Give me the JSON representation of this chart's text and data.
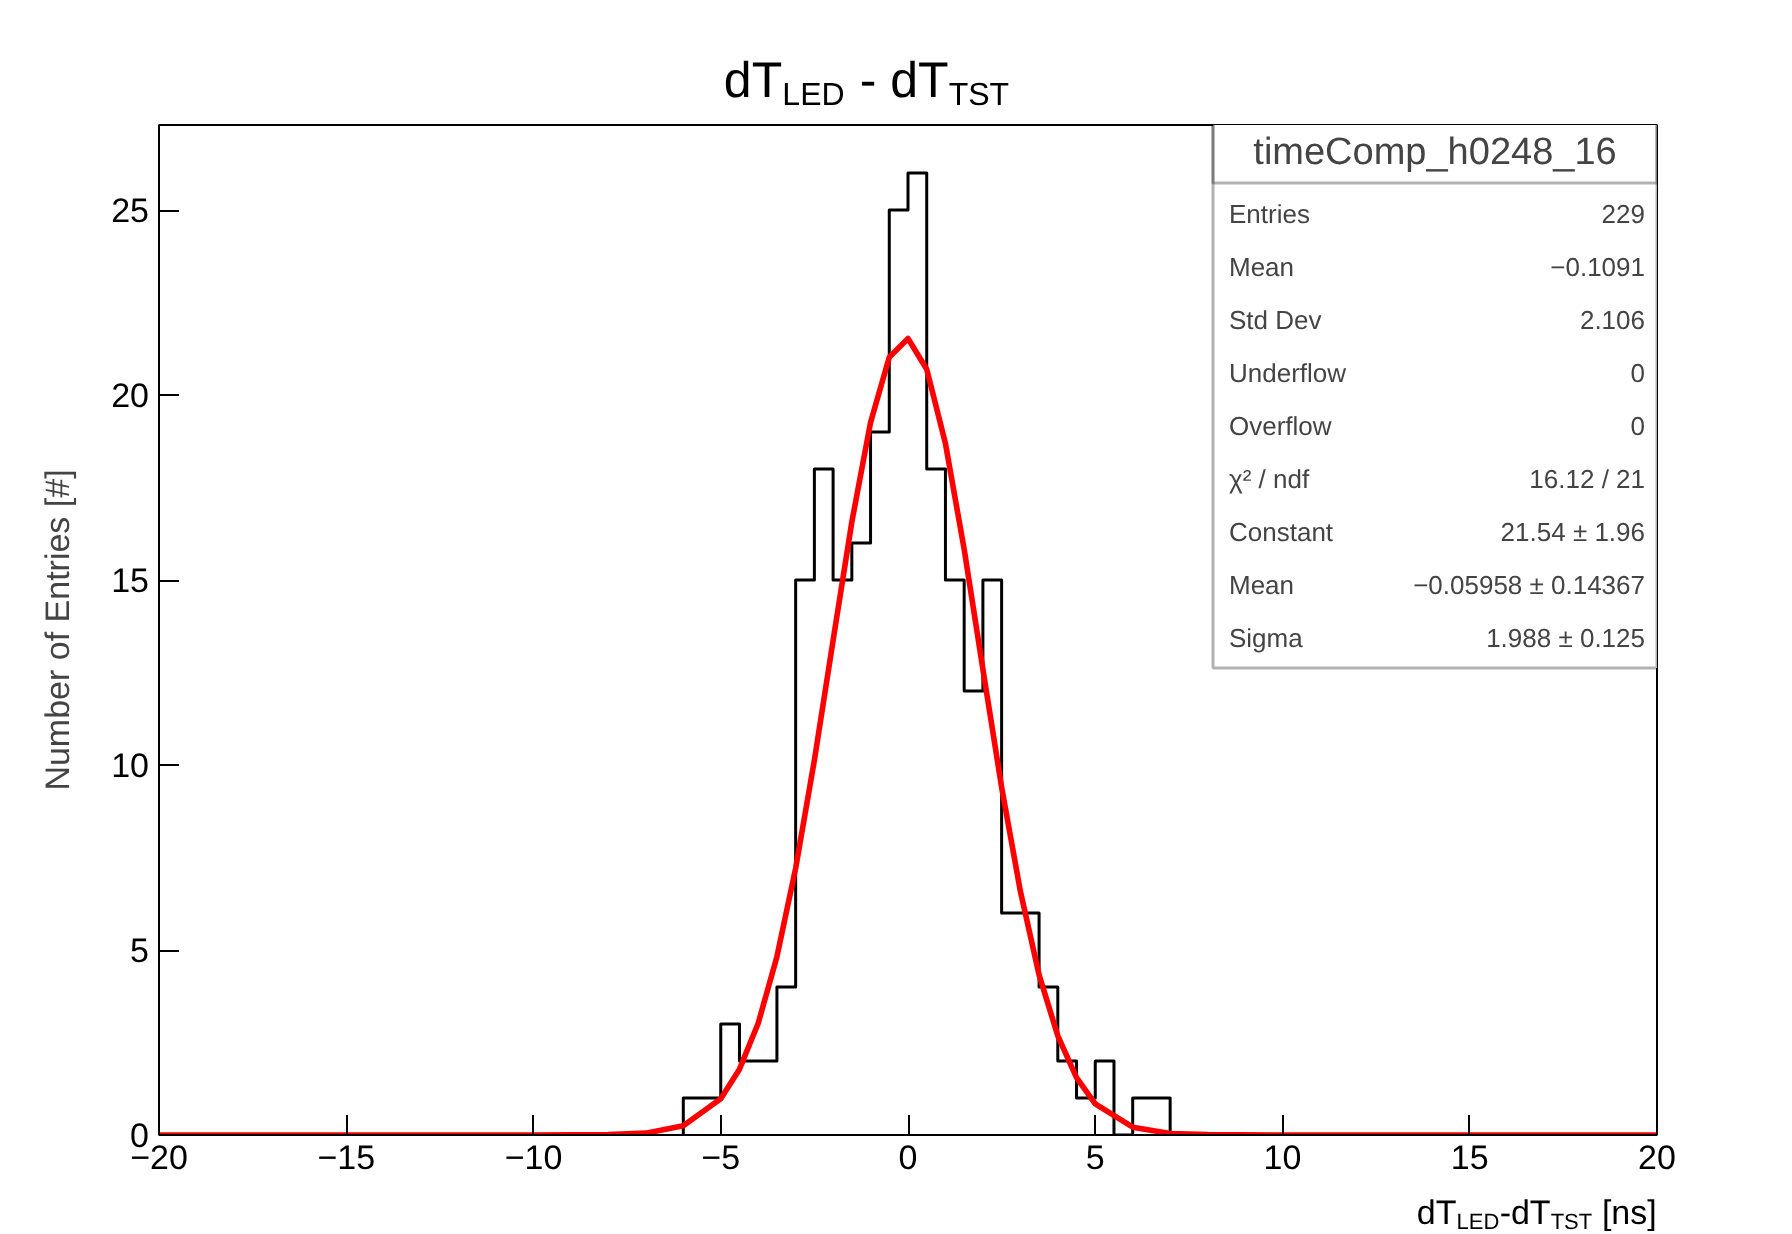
{
  "chart_data": {
    "type": "histogram",
    "title": "dT$_{LED}$ - dT$_{TST}$",
    "xlabel": "dT$_{LED}$-dT$_{TST}$ [ns]",
    "ylabel": "Number of Entries [#]",
    "bins": [
      -6,
      -5.5,
      -5,
      -4.5,
      -4,
      -3.5,
      -3,
      -2.5,
      -2,
      -1.5,
      -1,
      -0.5,
      0,
      0.5,
      1,
      1.5,
      2,
      2.5,
      3,
      3.5,
      4,
      4.5,
      5,
      5.5,
      6,
      6.5,
      7
    ],
    "values": [
      1,
      1,
      3,
      2,
      2,
      4,
      15,
      18,
      15,
      16,
      19,
      25,
      26,
      18,
      15,
      12,
      15,
      6,
      6,
      4,
      2,
      1,
      2,
      0,
      1,
      1
    ],
    "color": "#000000",
    "series": [
      {
        "type": "line",
        "color": "#ff0000",
        "x": [
          -20,
          -10,
          -8,
          -7,
          -6,
          -5,
          -4.5,
          -4,
          -3.5,
          -3,
          -2.5,
          -2,
          -1.5,
          -1,
          -0.5,
          0,
          0.5,
          1,
          1.5,
          2,
          2.5,
          3,
          3.5,
          4,
          4.5,
          5,
          6,
          7,
          8,
          10,
          20
        ],
        "values": [
          0,
          0,
          0.01,
          0.05,
          0.25,
          0.98,
          1.78,
          3.02,
          4.82,
          7.21,
          10.13,
          13.37,
          16.57,
          19.26,
          21.02,
          21.53,
          20.7,
          18.69,
          15.83,
          12.59,
          9.4,
          6.59,
          4.33,
          2.68,
          1.55,
          0.84,
          0.21,
          0.04,
          0.01,
          0,
          0
        ]
      }
    ],
    "xlim": [
      -20,
      20
    ],
    "ylim": [
      0,
      27.3
    ],
    "xticks": [
      -20,
      -15,
      -10,
      -5,
      0,
      5,
      10,
      15,
      20
    ],
    "yticks": [
      0,
      5,
      10,
      15,
      20,
      25
    ],
    "grid": false,
    "annotations": [
      "timeComp_h0248_16",
      "Entries",
      "229",
      "Mean",
      "−0.1091",
      "Std Dev",
      "2.106",
      "Underflow",
      "0",
      "Overflow",
      "0",
      "χ² / ndf",
      "16.12 / 21",
      "Constant",
      "21.54 ± 1.96",
      "Mean",
      "−0.05958 ± 0.14367",
      "Sigma",
      "1.988 ± 0.125"
    ]
  }
}
